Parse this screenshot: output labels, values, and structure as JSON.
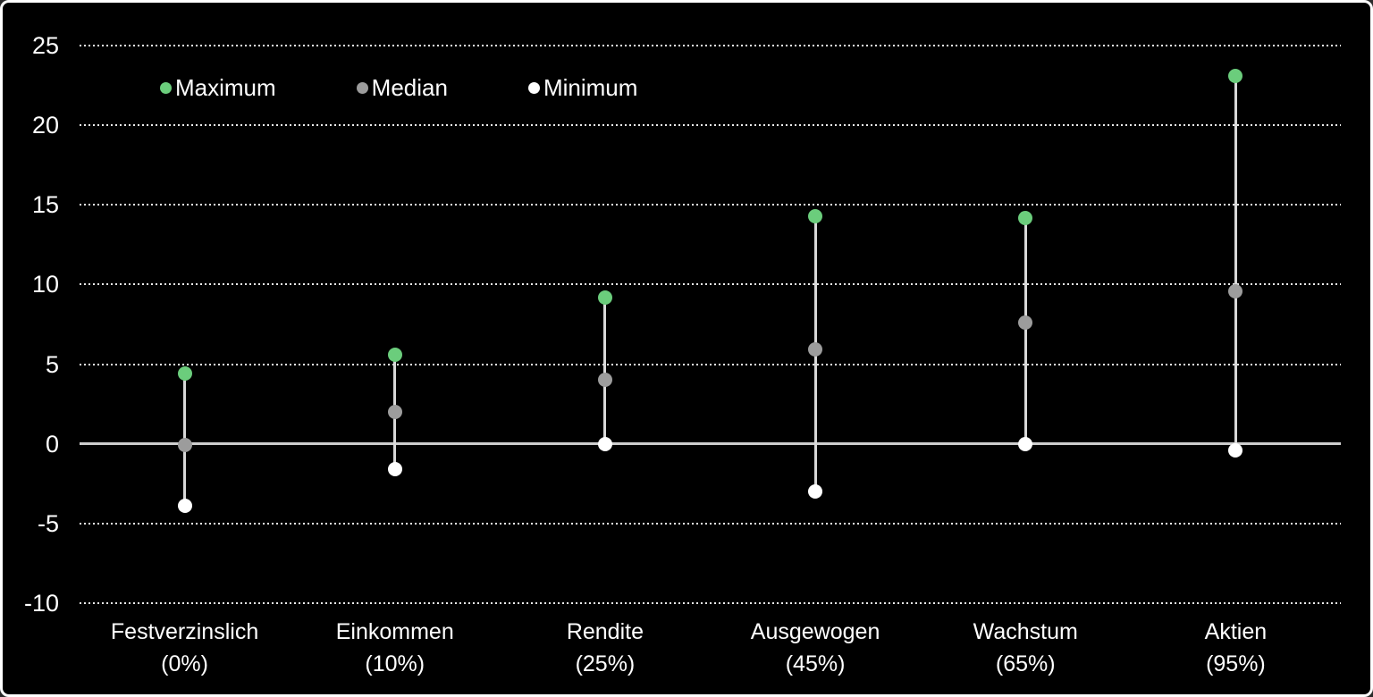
{
  "chart_data": {
    "type": "scatter",
    "subtype": "high-median-low range (floating stick) plot",
    "categories": [
      "Festverzinslich",
      "Einkommen",
      "Rendite",
      "Ausgewogen",
      "Wachstum",
      "Aktien"
    ],
    "category_sublabels": [
      "(0%)",
      "(10%)",
      "(25%)",
      "(45%)",
      "(65%)",
      "(95%)"
    ],
    "series": [
      {
        "name": "Maximum",
        "color": "#6bcd7c",
        "values": [
          4.4,
          5.6,
          9.2,
          14.3,
          14.2,
          23.1
        ]
      },
      {
        "name": "Median",
        "color": "#9c9c9c",
        "values": [
          -0.1,
          2.0,
          4.0,
          5.9,
          7.6,
          9.6
        ]
      },
      {
        "name": "Minimum",
        "color": "#ffffff",
        "values": [
          -3.9,
          -1.6,
          0.0,
          -3.0,
          0.0,
          -0.4
        ]
      }
    ],
    "y_ticks": [
      25,
      20,
      15,
      10,
      5,
      0,
      -5,
      -10
    ],
    "ylim": [
      -12,
      26
    ],
    "grid": "dotted horizontal gridlines at each tick, solid line at zero",
    "legend_position": "top-left inside plot"
  },
  "colors": {
    "background": "#000000",
    "frame_border": "#ffffff",
    "text": "#ffffff",
    "gridline": "#ececec",
    "zero_line": "#cdcdcd",
    "range_line": "#d8d8d8"
  }
}
